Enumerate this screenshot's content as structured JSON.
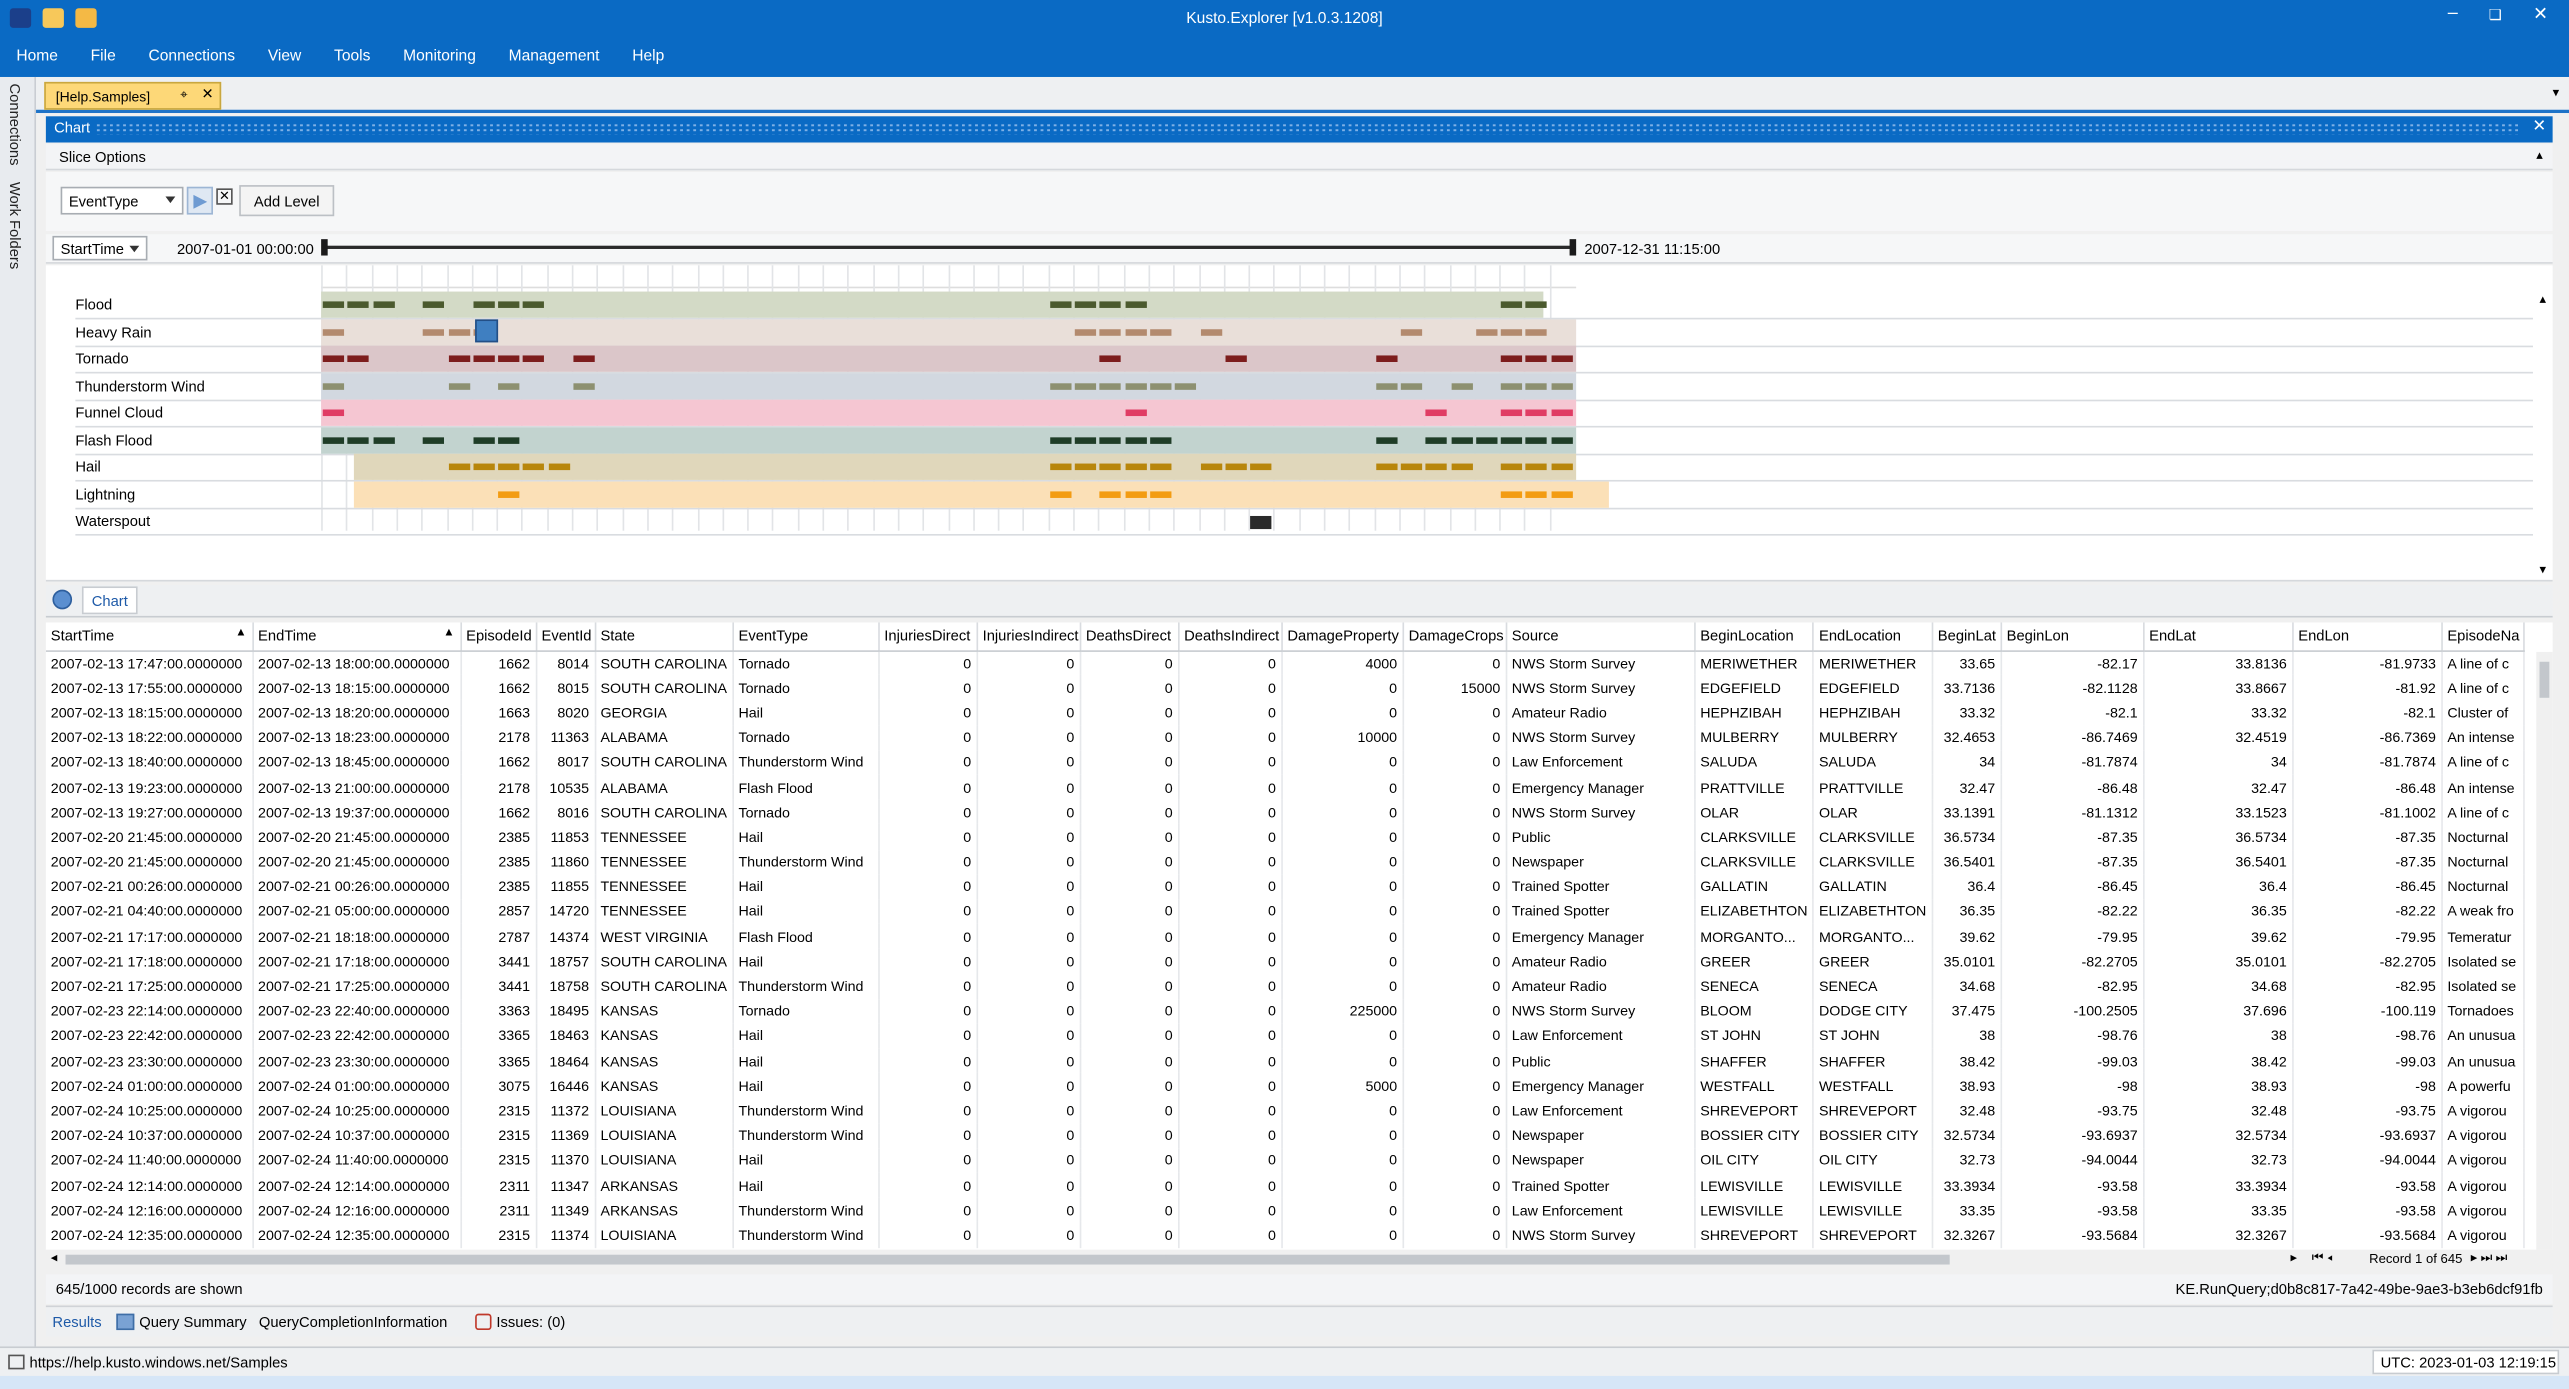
{
  "window": {
    "title": "Kusto.Explorer [v1.0.3.1208]",
    "controls": [
      "–",
      "❏",
      "✕"
    ]
  },
  "menu": [
    "Home",
    "File",
    "Connections",
    "View",
    "Tools",
    "Monitoring",
    "Management",
    "Help"
  ],
  "left_rail": {
    "connections": "Connections",
    "work_folders": "Work Folders"
  },
  "doc_tab": {
    "label": "[Help.Samples]"
  },
  "chart_panel": {
    "title": "Chart",
    "slice_options": "Slice Options",
    "level_combo": "EventType",
    "add_level": "Add Level",
    "time_combo": "StartTime",
    "range_start": "2007-01-01 00:00:00",
    "range_end": "2007-12-31 11:15:00",
    "footer_tab": "Chart"
  },
  "colors": {
    "accent": "#0a6ac4",
    "tab_active": "#fdd878"
  },
  "event_types": [
    {
      "name": "Flood",
      "band": "#d3dac6",
      "mark": "#4b5a2e",
      "marks": [
        0,
        1,
        2,
        4,
        6,
        7,
        8,
        29,
        30,
        31,
        32,
        47,
        48
      ]
    },
    {
      "name": "Heavy Rain",
      "band": "#e9dfd9",
      "mark": "#b38a6e",
      "marks": [
        0,
        4,
        5,
        6,
        30,
        31,
        32,
        33,
        35,
        43,
        46,
        47,
        48
      ]
    },
    {
      "name": "Tornado",
      "band": "#dbc6c9",
      "mark": "#7d1d1d",
      "marks": [
        0,
        1,
        5,
        6,
        7,
        8,
        10,
        31,
        36,
        42,
        47,
        48,
        49
      ]
    },
    {
      "name": "Thunderstorm Wind",
      "band": "#d2d8e0",
      "mark": "#8d9070",
      "marks": [
        0,
        5,
        7,
        10,
        29,
        30,
        31,
        32,
        33,
        34,
        42,
        43,
        45,
        47,
        48,
        49
      ]
    },
    {
      "name": "Funnel Cloud",
      "band": "#f5c6d2",
      "mark": "#e03c64",
      "marks": [
        0,
        32,
        44,
        47,
        48,
        49
      ]
    },
    {
      "name": "Flash Flood",
      "band": "#c2d3cf",
      "mark": "#1f3d27",
      "marks": [
        0,
        1,
        2,
        4,
        6,
        7,
        29,
        30,
        31,
        32,
        33,
        42,
        44,
        45,
        46,
        47,
        48,
        49
      ]
    },
    {
      "name": "Hail",
      "band": "#e0d7bb",
      "mark": "#b8860b",
      "marks": [
        5,
        6,
        7,
        8,
        9,
        29,
        30,
        31,
        32,
        33,
        35,
        36,
        37,
        42,
        43,
        44,
        45,
        47,
        48,
        49
      ]
    },
    {
      "name": "Lightning",
      "band": "#fbe0b7",
      "mark": "#f39c12",
      "marks": [
        7,
        29,
        31,
        32,
        33,
        47,
        48,
        49
      ]
    },
    {
      "name": "Waterspout",
      "band": "#ffffff",
      "mark": "#2a2a2a",
      "marks": [
        37
      ]
    }
  ],
  "grid": {
    "columns": [
      "StartTime",
      "EndTime",
      "EpisodeId",
      "EventId",
      "State",
      "EventType",
      "InjuriesDirect",
      "InjuriesIndirect",
      "DeathsDirect",
      "DeathsIndirect",
      "DamageProperty",
      "DamageCrops",
      "Source",
      "BeginLocation",
      "EndLocation",
      "BeginLat",
      "BeginLon",
      "EndLat",
      "EndLon",
      "EpisodeNa"
    ],
    "rows": [
      [
        "2007-02-13 17:47:00.0000000",
        "2007-02-13 18:00:00.0000000",
        "1662",
        "8014",
        "SOUTH CAROLINA",
        "Tornado",
        "0",
        "0",
        "0",
        "0",
        "4000",
        "0",
        "NWS Storm Survey",
        "MERIWETHER",
        "MERIWETHER",
        "33.65",
        "-82.17",
        "33.8136",
        "-81.9733",
        "A line of c"
      ],
      [
        "2007-02-13 17:55:00.0000000",
        "2007-02-13 18:15:00.0000000",
        "1662",
        "8015",
        "SOUTH CAROLINA",
        "Tornado",
        "0",
        "0",
        "0",
        "0",
        "0",
        "15000",
        "NWS Storm Survey",
        "EDGEFIELD",
        "EDGEFIELD",
        "33.7136",
        "-82.1128",
        "33.8667",
        "-81.92",
        "A line of c"
      ],
      [
        "2007-02-13 18:15:00.0000000",
        "2007-02-13 18:20:00.0000000",
        "1663",
        "8020",
        "GEORGIA",
        "Hail",
        "0",
        "0",
        "0",
        "0",
        "0",
        "0",
        "Amateur Radio",
        "HEPHZIBAH",
        "HEPHZIBAH",
        "33.32",
        "-82.1",
        "33.32",
        "-82.1",
        "Cluster of"
      ],
      [
        "2007-02-13 18:22:00.0000000",
        "2007-02-13 18:23:00.0000000",
        "2178",
        "11363",
        "ALABAMA",
        "Tornado",
        "0",
        "0",
        "0",
        "0",
        "10000",
        "0",
        "NWS Storm Survey",
        "MULBERRY",
        "MULBERRY",
        "32.4653",
        "-86.7469",
        "32.4519",
        "-86.7369",
        "An intense"
      ],
      [
        "2007-02-13 18:40:00.0000000",
        "2007-02-13 18:45:00.0000000",
        "1662",
        "8017",
        "SOUTH CAROLINA",
        "Thunderstorm Wind",
        "0",
        "0",
        "0",
        "0",
        "0",
        "0",
        "Law Enforcement",
        "SALUDA",
        "SALUDA",
        "34",
        "-81.7874",
        "34",
        "-81.7874",
        "A line of c"
      ],
      [
        "2007-02-13 19:23:00.0000000",
        "2007-02-13 21:00:00.0000000",
        "2178",
        "10535",
        "ALABAMA",
        "Flash Flood",
        "0",
        "0",
        "0",
        "0",
        "0",
        "0",
        "Emergency Manager",
        "PRATTVILLE",
        "PRATTVILLE",
        "32.47",
        "-86.48",
        "32.47",
        "-86.48",
        "An intense"
      ],
      [
        "2007-02-13 19:27:00.0000000",
        "2007-02-13 19:37:00.0000000",
        "1662",
        "8016",
        "SOUTH CAROLINA",
        "Tornado",
        "0",
        "0",
        "0",
        "0",
        "0",
        "0",
        "NWS Storm Survey",
        "OLAR",
        "OLAR",
        "33.1391",
        "-81.1312",
        "33.1523",
        "-81.1002",
        "A line of c"
      ],
      [
        "2007-02-20 21:45:00.0000000",
        "2007-02-20 21:45:00.0000000",
        "2385",
        "11853",
        "TENNESSEE",
        "Hail",
        "0",
        "0",
        "0",
        "0",
        "0",
        "0",
        "Public",
        "CLARKSVILLE",
        "CLARKSVILLE",
        "36.5734",
        "-87.35",
        "36.5734",
        "-87.35",
        "Nocturnal"
      ],
      [
        "2007-02-20 21:45:00.0000000",
        "2007-02-20 21:45:00.0000000",
        "2385",
        "11860",
        "TENNESSEE",
        "Thunderstorm Wind",
        "0",
        "0",
        "0",
        "0",
        "0",
        "0",
        "Newspaper",
        "CLARKSVILLE",
        "CLARKSVILLE",
        "36.5401",
        "-87.35",
        "36.5401",
        "-87.35",
        "Nocturnal"
      ],
      [
        "2007-02-21 00:26:00.0000000",
        "2007-02-21 00:26:00.0000000",
        "2385",
        "11855",
        "TENNESSEE",
        "Hail",
        "0",
        "0",
        "0",
        "0",
        "0",
        "0",
        "Trained Spotter",
        "GALLATIN",
        "GALLATIN",
        "36.4",
        "-86.45",
        "36.4",
        "-86.45",
        "Nocturnal"
      ],
      [
        "2007-02-21 04:40:00.0000000",
        "2007-02-21 05:00:00.0000000",
        "2857",
        "14720",
        "TENNESSEE",
        "Hail",
        "0",
        "0",
        "0",
        "0",
        "0",
        "0",
        "Trained Spotter",
        "ELIZABETHTON",
        "ELIZABETHTON",
        "36.35",
        "-82.22",
        "36.35",
        "-82.22",
        "A weak fro"
      ],
      [
        "2007-02-21 17:17:00.0000000",
        "2007-02-21 18:18:00.0000000",
        "2787",
        "14374",
        "WEST VIRGINIA",
        "Flash Flood",
        "0",
        "0",
        "0",
        "0",
        "0",
        "0",
        "Emergency Manager",
        "MORGANTO...",
        "MORGANTO...",
        "39.62",
        "-79.95",
        "39.62",
        "-79.95",
        "Temeratur"
      ],
      [
        "2007-02-21 17:18:00.0000000",
        "2007-02-21 17:18:00.0000000",
        "3441",
        "18757",
        "SOUTH CAROLINA",
        "Hail",
        "0",
        "0",
        "0",
        "0",
        "0",
        "0",
        "Amateur Radio",
        "GREER",
        "GREER",
        "35.0101",
        "-82.2705",
        "35.0101",
        "-82.2705",
        "Isolated se"
      ],
      [
        "2007-02-21 17:25:00.0000000",
        "2007-02-21 17:25:00.0000000",
        "3441",
        "18758",
        "SOUTH CAROLINA",
        "Thunderstorm Wind",
        "0",
        "0",
        "0",
        "0",
        "0",
        "0",
        "Amateur Radio",
        "SENECA",
        "SENECA",
        "34.68",
        "-82.95",
        "34.68",
        "-82.95",
        "Isolated se"
      ],
      [
        "2007-02-23 22:14:00.0000000",
        "2007-02-23 22:40:00.0000000",
        "3363",
        "18495",
        "KANSAS",
        "Tornado",
        "0",
        "0",
        "0",
        "0",
        "225000",
        "0",
        "NWS Storm Survey",
        "BLOOM",
        "DODGE CITY",
        "37.475",
        "-100.2505",
        "37.696",
        "-100.119",
        "Tornadoes"
      ],
      [
        "2007-02-23 22:42:00.0000000",
        "2007-02-23 22:42:00.0000000",
        "3365",
        "18463",
        "KANSAS",
        "Hail",
        "0",
        "0",
        "0",
        "0",
        "0",
        "0",
        "Law Enforcement",
        "ST JOHN",
        "ST JOHN",
        "38",
        "-98.76",
        "38",
        "-98.76",
        "An unusua"
      ],
      [
        "2007-02-23 23:30:00.0000000",
        "2007-02-23 23:30:00.0000000",
        "3365",
        "18464",
        "KANSAS",
        "Hail",
        "0",
        "0",
        "0",
        "0",
        "0",
        "0",
        "Public",
        "SHAFFER",
        "SHAFFER",
        "38.42",
        "-99.03",
        "38.42",
        "-99.03",
        "An unusua"
      ],
      [
        "2007-02-24 01:00:00.0000000",
        "2007-02-24 01:00:00.0000000",
        "3075",
        "16446",
        "KANSAS",
        "Hail",
        "0",
        "0",
        "0",
        "0",
        "5000",
        "0",
        "Emergency Manager",
        "WESTFALL",
        "WESTFALL",
        "38.93",
        "-98",
        "38.93",
        "-98",
        "A powerfu"
      ],
      [
        "2007-02-24 10:25:00.0000000",
        "2007-02-24 10:25:00.0000000",
        "2315",
        "11372",
        "LOUISIANA",
        "Thunderstorm Wind",
        "0",
        "0",
        "0",
        "0",
        "0",
        "0",
        "Law Enforcement",
        "SHREVEPORT",
        "SHREVEPORT",
        "32.48",
        "-93.75",
        "32.48",
        "-93.75",
        "A vigorou"
      ],
      [
        "2007-02-24 10:37:00.0000000",
        "2007-02-24 10:37:00.0000000",
        "2315",
        "11369",
        "LOUISIANA",
        "Thunderstorm Wind",
        "0",
        "0",
        "0",
        "0",
        "0",
        "0",
        "Newspaper",
        "BOSSIER CITY",
        "BOSSIER CITY",
        "32.5734",
        "-93.6937",
        "32.5734",
        "-93.6937",
        "A vigorou"
      ],
      [
        "2007-02-24 11:40:00.0000000",
        "2007-02-24 11:40:00.0000000",
        "2315",
        "11370",
        "LOUISIANA",
        "Hail",
        "0",
        "0",
        "0",
        "0",
        "0",
        "0",
        "Newspaper",
        "OIL CITY",
        "OIL CITY",
        "32.73",
        "-94.0044",
        "32.73",
        "-94.0044",
        "A vigorou"
      ],
      [
        "2007-02-24 12:14:00.0000000",
        "2007-02-24 12:14:00.0000000",
        "2311",
        "11347",
        "ARKANSAS",
        "Hail",
        "0",
        "0",
        "0",
        "0",
        "0",
        "0",
        "Trained Spotter",
        "LEWISVILLE",
        "LEWISVILLE",
        "33.3934",
        "-93.58",
        "33.3934",
        "-93.58",
        "A vigorou"
      ],
      [
        "2007-02-24 12:16:00.0000000",
        "2007-02-24 12:16:00.0000000",
        "2311",
        "11349",
        "ARKANSAS",
        "Thunderstorm Wind",
        "0",
        "0",
        "0",
        "0",
        "0",
        "0",
        "Law Enforcement",
        "LEWISVILLE",
        "LEWISVILLE",
        "33.35",
        "-93.58",
        "33.35",
        "-93.58",
        "A vigorou"
      ],
      [
        "2007-02-24 12:35:00.0000000",
        "2007-02-24 12:35:00.0000000",
        "2315",
        "11374",
        "LOUISIANA",
        "Thunderstorm Wind",
        "0",
        "0",
        "0",
        "0",
        "0",
        "0",
        "NWS Storm Survey",
        "SHREVEPORT",
        "SHREVEPORT",
        "32.3267",
        "-93.5684",
        "32.3267",
        "-93.5684",
        "A vigorou"
      ]
    ],
    "numeric_cols": [
      2,
      3,
      6,
      7,
      8,
      9,
      10,
      11,
      15,
      16,
      17,
      18
    ]
  },
  "pager": {
    "record": "Record 1 of 645"
  },
  "status": {
    "records": "645/1000 records are shown",
    "query_id": "KE.RunQuery;d0b8c817-7a42-49be-9ae3-b3eb6dcf91fb"
  },
  "result_tabs": {
    "results": "Results",
    "query_summary": "Query Summary",
    "completion": "QueryCompletionInformation",
    "issues": "Issues: (0)"
  },
  "statusbar": {
    "url": "https://help.kusto.windows.net/Samples",
    "utc": "UTC: 2023-01-03 12:19:15"
  }
}
